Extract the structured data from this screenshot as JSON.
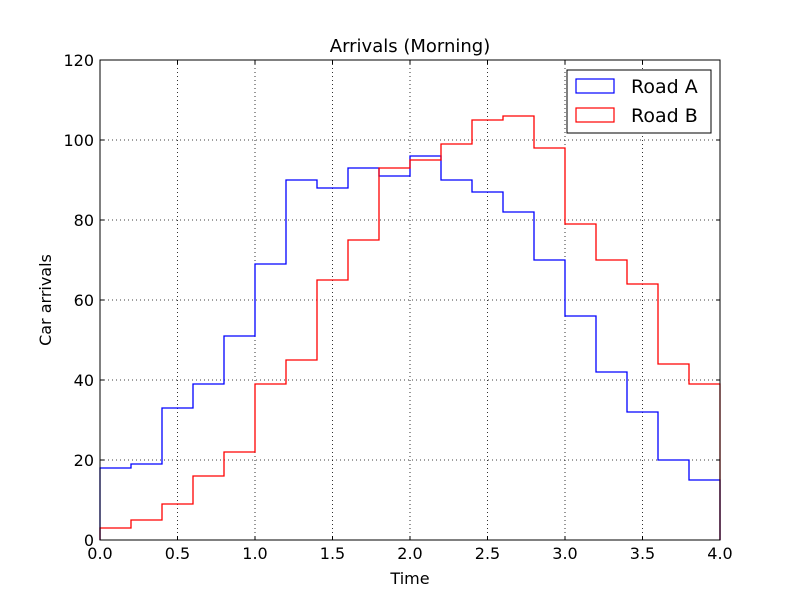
{
  "chart_data": {
    "type": "line",
    "step": true,
    "title": "Arrivals (Morning)",
    "xlabel": "Time",
    "ylabel": "Car arrivals",
    "xlim": [
      0.0,
      4.0
    ],
    "ylim": [
      0,
      120
    ],
    "xticks": [
      0.0,
      0.5,
      1.0,
      1.5,
      2.0,
      2.5,
      3.0,
      3.5,
      4.0
    ],
    "xtick_labels": [
      "0.0",
      "0.5",
      "1.0",
      "1.5",
      "2.0",
      "2.5",
      "3.0",
      "3.5",
      "4.0"
    ],
    "yticks": [
      0,
      20,
      40,
      60,
      80,
      100,
      120
    ],
    "ytick_labels": [
      "0",
      "20",
      "40",
      "60",
      "80",
      "100",
      "120"
    ],
    "grid": true,
    "legend_position": "top-right",
    "bin_edges": [
      0.0,
      0.2,
      0.4,
      0.6,
      0.8,
      1.0,
      1.2,
      1.4,
      1.6,
      1.8,
      2.0,
      2.2,
      2.4,
      2.6,
      2.8,
      3.0,
      3.2,
      3.4,
      3.6,
      3.8,
      4.0
    ],
    "series": [
      {
        "name": "Road A",
        "color": "#0000ff",
        "values": [
          18,
          19,
          33,
          39,
          51,
          69,
          90,
          88,
          93,
          91,
          96,
          90,
          87,
          82,
          70,
          56,
          42,
          32,
          20,
          15
        ]
      },
      {
        "name": "Road B",
        "color": "#ff0000",
        "values": [
          3,
          5,
          9,
          16,
          22,
          39,
          45,
          65,
          75,
          93,
          95,
          99,
          105,
          106,
          98,
          79,
          70,
          64,
          44,
          39
        ]
      }
    ]
  }
}
